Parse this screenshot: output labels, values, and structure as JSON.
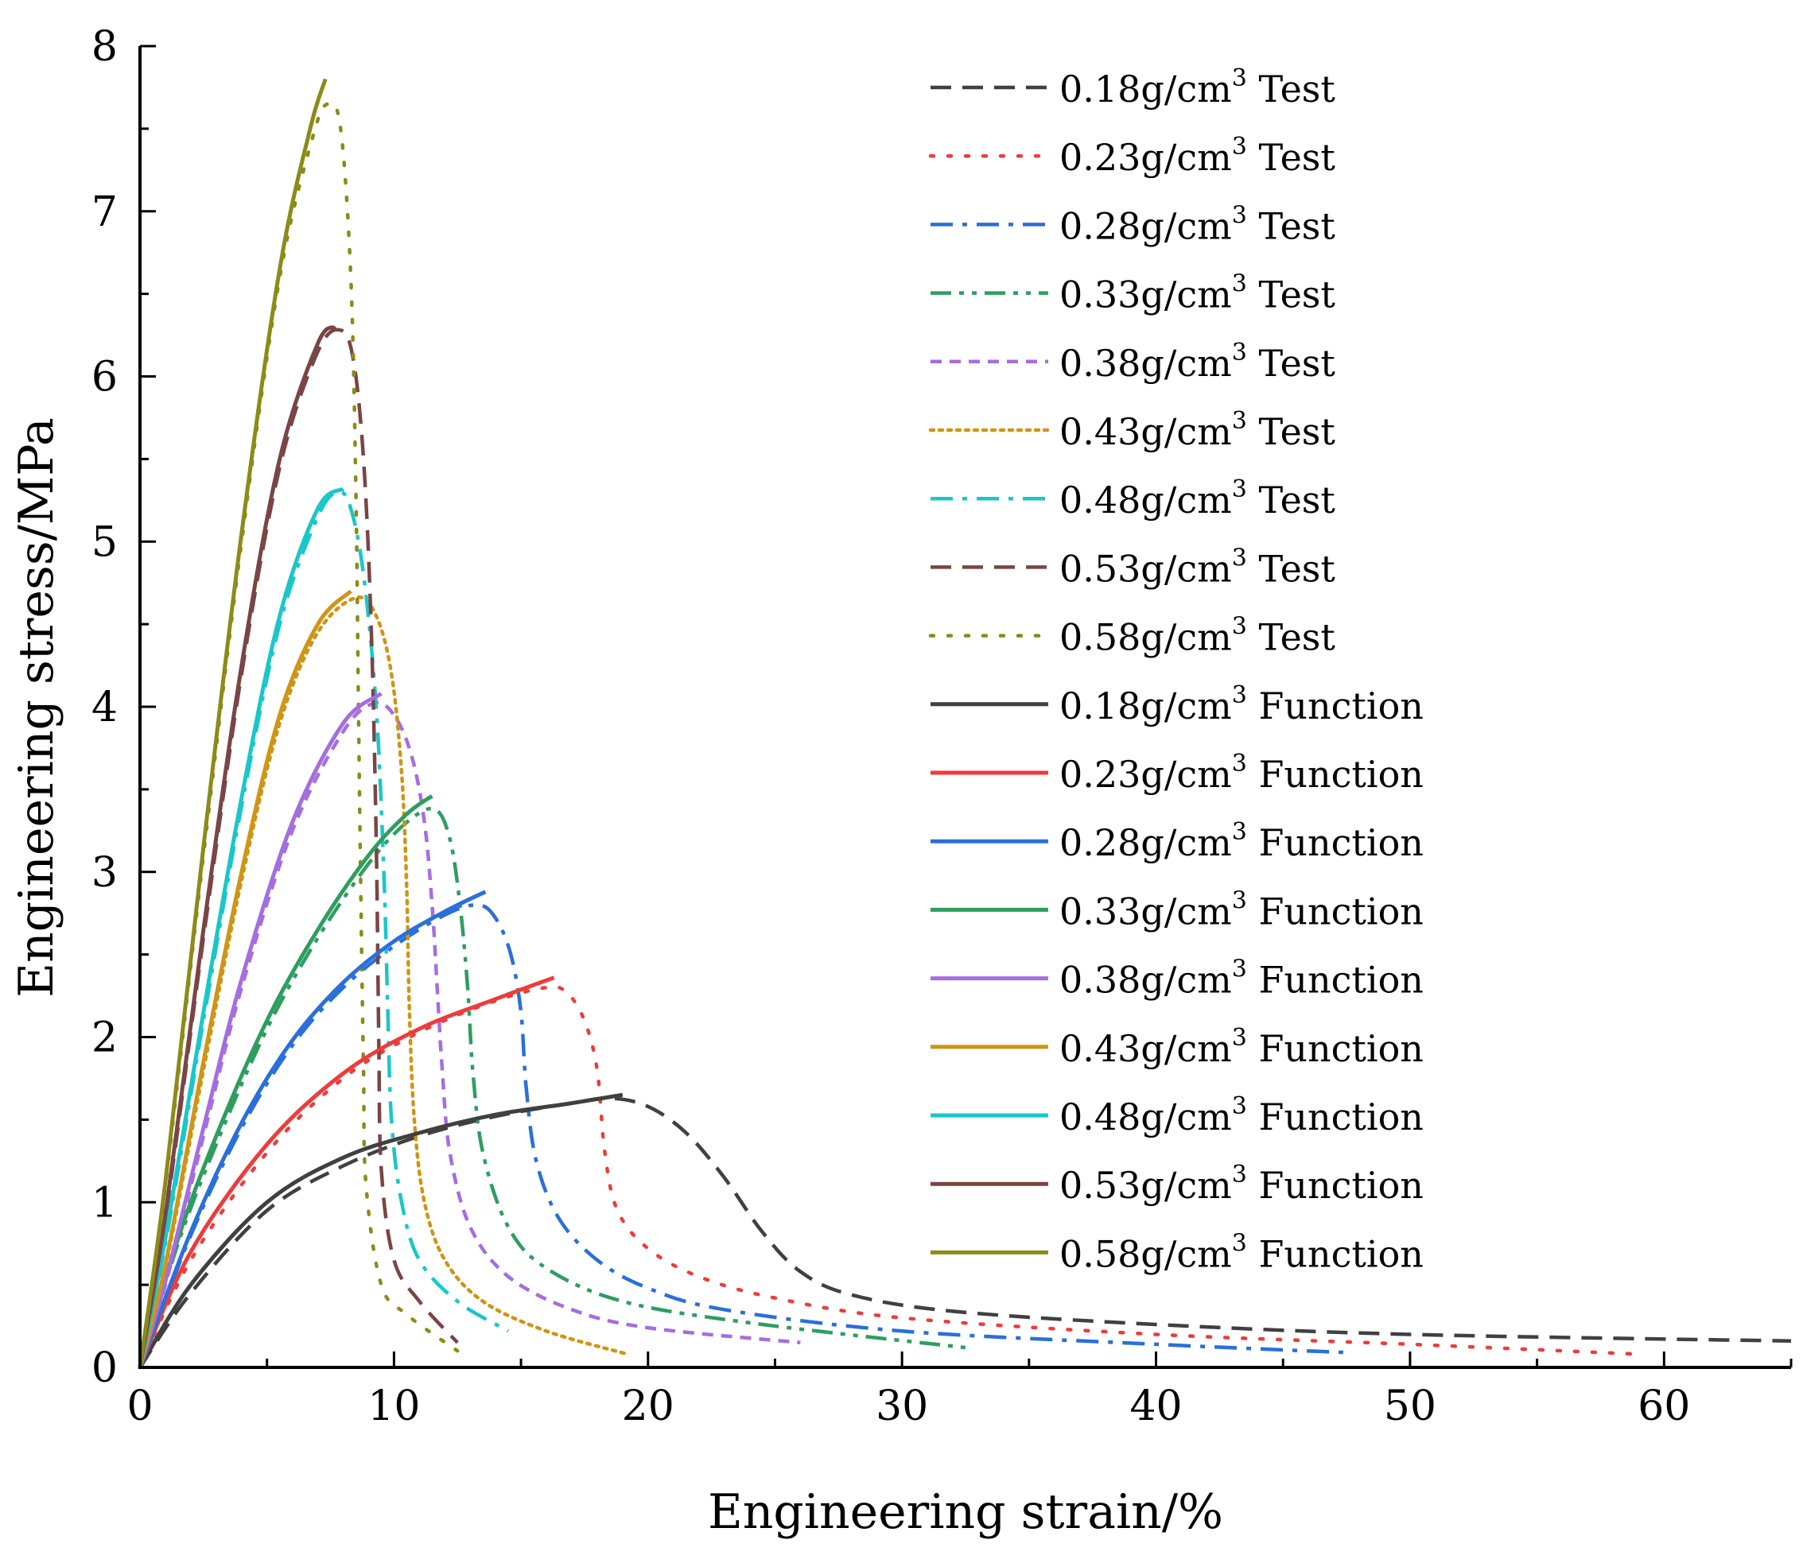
{
  "chart_data": {
    "type": "line",
    "xlabel": "Engineering strain/%",
    "ylabel": "Engineering stress/MPa",
    "xlim": [
      0,
      65
    ],
    "ylim": [
      0,
      8
    ],
    "x_ticks": [
      "0",
      "10",
      "20",
      "30",
      "40",
      "50",
      "60"
    ],
    "y_ticks": [
      "0",
      "1",
      "2",
      "3",
      "4",
      "5",
      "6",
      "7",
      "8"
    ],
    "grid": false,
    "legend_position": "top-right",
    "colors": {
      "d018": "#404040",
      "d023": "#ef3b3b",
      "d028": "#2a6fdb",
      "d033": "#2e9e5e",
      "d038": "#a46ee0",
      "d043": "#cf9514",
      "d048": "#19c7c9",
      "d053": "#7a4545",
      "d058": "#8b8b17"
    },
    "series": [
      {
        "name": "0.18g/cm³ Test",
        "density": "0.18",
        "suffix": "Test",
        "style": "dash",
        "colorKey": "d018",
        "points": [
          [
            0,
            0
          ],
          [
            2,
            0.45
          ],
          [
            5,
            0.95
          ],
          [
            8,
            1.22
          ],
          [
            11,
            1.4
          ],
          [
            14,
            1.52
          ],
          [
            17,
            1.6
          ],
          [
            18.5,
            1.63
          ],
          [
            20,
            1.58
          ],
          [
            21.5,
            1.42
          ],
          [
            23,
            1.15
          ],
          [
            24.5,
            0.82
          ],
          [
            26,
            0.58
          ],
          [
            28,
            0.44
          ],
          [
            32,
            0.34
          ],
          [
            40,
            0.26
          ],
          [
            50,
            0.2
          ],
          [
            65,
            0.16
          ]
        ]
      },
      {
        "name": "0.23g/cm³ Test",
        "density": "0.23",
        "suffix": "Test",
        "style": "dot",
        "colorKey": "d023",
        "points": [
          [
            0,
            0
          ],
          [
            2,
            0.65
          ],
          [
            5,
            1.3
          ],
          [
            8,
            1.75
          ],
          [
            11,
            2.03
          ],
          [
            14,
            2.22
          ],
          [
            16,
            2.3
          ],
          [
            16.8,
            2.27
          ],
          [
            17.5,
            2.1
          ],
          [
            18,
            1.8
          ],
          [
            18.3,
            1.3
          ],
          [
            18.8,
            0.95
          ],
          [
            20,
            0.72
          ],
          [
            22,
            0.55
          ],
          [
            25,
            0.42
          ],
          [
            30,
            0.3
          ],
          [
            40,
            0.2
          ],
          [
            50,
            0.14
          ],
          [
            59,
            0.08
          ]
        ]
      },
      {
        "name": "0.28g/cm³ Test",
        "density": "0.28",
        "suffix": "Test",
        "style": "dashdot",
        "colorKey": "d028",
        "points": [
          [
            0,
            0
          ],
          [
            2,
            0.8
          ],
          [
            4,
            1.45
          ],
          [
            6,
            1.95
          ],
          [
            8,
            2.3
          ],
          [
            10,
            2.55
          ],
          [
            12,
            2.74
          ],
          [
            13.3,
            2.8
          ],
          [
            14,
            2.72
          ],
          [
            14.6,
            2.5
          ],
          [
            15,
            2.15
          ],
          [
            15.2,
            1.7
          ],
          [
            15.6,
            1.25
          ],
          [
            16.5,
            0.9
          ],
          [
            18,
            0.65
          ],
          [
            20,
            0.48
          ],
          [
            23,
            0.35
          ],
          [
            30,
            0.22
          ],
          [
            40,
            0.14
          ],
          [
            47.5,
            0.09
          ]
        ]
      },
      {
        "name": "0.33g/cm³ Test",
        "density": "0.33",
        "suffix": "Test",
        "style": "dashdotdot",
        "colorKey": "d033",
        "points": [
          [
            0,
            0
          ],
          [
            1.5,
            0.75
          ],
          [
            3,
            1.35
          ],
          [
            5,
            2.05
          ],
          [
            7,
            2.6
          ],
          [
            9,
            3.05
          ],
          [
            10.5,
            3.3
          ],
          [
            11.6,
            3.38
          ],
          [
            12.2,
            3.2
          ],
          [
            12.6,
            2.8
          ],
          [
            12.9,
            2.3
          ],
          [
            13.1,
            1.8
          ],
          [
            13.5,
            1.3
          ],
          [
            14.5,
            0.85
          ],
          [
            16,
            0.6
          ],
          [
            19,
            0.4
          ],
          [
            24,
            0.27
          ],
          [
            32.5,
            0.12
          ]
        ]
      },
      {
        "name": "0.38g/cm³ Test",
        "density": "0.38",
        "suffix": "Test",
        "style": "shortdash",
        "colorKey": "d038",
        "points": [
          [
            0,
            0
          ],
          [
            1,
            0.5
          ],
          [
            2.5,
            1.4
          ],
          [
            4,
            2.3
          ],
          [
            6,
            3.25
          ],
          [
            8,
            3.85
          ],
          [
            9.2,
            4.02
          ],
          [
            10,
            3.95
          ],
          [
            10.7,
            3.7
          ],
          [
            11.2,
            3.3
          ],
          [
            11.5,
            2.8
          ],
          [
            11.7,
            2.3
          ],
          [
            11.9,
            1.8
          ],
          [
            12.2,
            1.3
          ],
          [
            13,
            0.85
          ],
          [
            14.5,
            0.55
          ],
          [
            17,
            0.35
          ],
          [
            20,
            0.24
          ],
          [
            26,
            0.15
          ]
        ]
      },
      {
        "name": "0.43g/cm³ Test",
        "density": "0.43",
        "suffix": "Test",
        "style": "fine-dot",
        "colorKey": "d043",
        "points": [
          [
            0,
            0
          ],
          [
            1,
            0.6
          ],
          [
            2.5,
            1.8
          ],
          [
            4,
            2.95
          ],
          [
            5.5,
            3.9
          ],
          [
            7,
            4.45
          ],
          [
            8.5,
            4.66
          ],
          [
            9.3,
            4.55
          ],
          [
            9.9,
            4.2
          ],
          [
            10.3,
            3.6
          ],
          [
            10.5,
            2.9
          ],
          [
            10.6,
            2.2
          ],
          [
            10.8,
            1.5
          ],
          [
            11.2,
            1.0
          ],
          [
            12,
            0.65
          ],
          [
            13.5,
            0.4
          ],
          [
            16,
            0.22
          ],
          [
            19.2,
            0.08
          ]
        ]
      },
      {
        "name": "0.48g/cm³ Test",
        "density": "0.48",
        "suffix": "Test",
        "style": "dashdot",
        "colorKey": "d048",
        "points": [
          [
            0,
            0
          ],
          [
            1,
            0.75
          ],
          [
            2.5,
            2.1
          ],
          [
            4,
            3.4
          ],
          [
            5.5,
            4.5
          ],
          [
            7,
            5.15
          ],
          [
            7.8,
            5.3
          ],
          [
            8.3,
            5.2
          ],
          [
            8.8,
            4.8
          ],
          [
            9.3,
            4.0
          ],
          [
            9.6,
            3.0
          ],
          [
            9.75,
            2.2
          ],
          [
            9.9,
            1.5
          ],
          [
            10.3,
            1.0
          ],
          [
            11,
            0.65
          ],
          [
            12.5,
            0.4
          ],
          [
            14.5,
            0.22
          ]
        ]
      },
      {
        "name": "0.53g/cm³ Test",
        "density": "0.53",
        "suffix": "Test",
        "style": "dash",
        "colorKey": "d053",
        "points": [
          [
            0,
            0
          ],
          [
            1,
            0.9
          ],
          [
            2.5,
            2.6
          ],
          [
            4,
            4.2
          ],
          [
            5.5,
            5.45
          ],
          [
            7,
            6.15
          ],
          [
            7.9,
            6.28
          ],
          [
            8.4,
            6.1
          ],
          [
            8.8,
            5.5
          ],
          [
            9.1,
            4.5
          ],
          [
            9.3,
            3.2
          ],
          [
            9.4,
            2.0
          ],
          [
            9.5,
            1.2
          ],
          [
            10,
            0.65
          ],
          [
            11,
            0.4
          ],
          [
            12.5,
            0.15
          ]
        ]
      },
      {
        "name": "0.58g/cm³ Test",
        "density": "0.58",
        "suffix": "Test",
        "style": "dot",
        "colorKey": "d058",
        "points": [
          [
            0,
            0
          ],
          [
            1,
            1.1
          ],
          [
            2.5,
            3.1
          ],
          [
            4,
            5.0
          ],
          [
            5.5,
            6.6
          ],
          [
            6.8,
            7.45
          ],
          [
            7.4,
            7.65
          ],
          [
            7.9,
            7.5
          ],
          [
            8.3,
            6.6
          ],
          [
            8.5,
            5.3
          ],
          [
            8.6,
            4.0
          ],
          [
            8.7,
            2.8
          ],
          [
            8.8,
            1.8
          ],
          [
            8.9,
            1.1
          ],
          [
            9.5,
            0.5
          ],
          [
            10.5,
            0.32
          ],
          [
            12.5,
            0.1
          ]
        ]
      },
      {
        "name": "0.18g/cm³ Function",
        "density": "0.18",
        "suffix": "Function",
        "style": "solid",
        "colorKey": "d018",
        "points": [
          [
            0,
            0
          ],
          [
            2,
            0.5
          ],
          [
            5,
            1.0
          ],
          [
            8,
            1.27
          ],
          [
            11,
            1.42
          ],
          [
            14,
            1.53
          ],
          [
            17,
            1.6
          ],
          [
            19,
            1.65
          ]
        ]
      },
      {
        "name": "0.23g/cm³ Function",
        "density": "0.23",
        "suffix": "Function",
        "style": "solid",
        "colorKey": "d023",
        "points": [
          [
            0,
            0
          ],
          [
            2,
            0.7
          ],
          [
            5,
            1.35
          ],
          [
            8,
            1.78
          ],
          [
            11,
            2.05
          ],
          [
            14,
            2.23
          ],
          [
            16.3,
            2.36
          ]
        ]
      },
      {
        "name": "0.28g/cm³ Function",
        "density": "0.28",
        "suffix": "Function",
        "style": "solid",
        "colorKey": "d028",
        "points": [
          [
            0,
            0
          ],
          [
            2,
            0.82
          ],
          [
            4,
            1.48
          ],
          [
            6,
            1.98
          ],
          [
            8,
            2.33
          ],
          [
            10,
            2.58
          ],
          [
            12,
            2.76
          ],
          [
            13.6,
            2.88
          ]
        ]
      },
      {
        "name": "0.33g/cm³ Function",
        "density": "0.33",
        "suffix": "Function",
        "style": "solid",
        "colorKey": "d033",
        "points": [
          [
            0,
            0
          ],
          [
            1.5,
            0.78
          ],
          [
            3,
            1.4
          ],
          [
            5,
            2.1
          ],
          [
            7,
            2.65
          ],
          [
            9,
            3.1
          ],
          [
            10.5,
            3.35
          ],
          [
            11.5,
            3.46
          ]
        ]
      },
      {
        "name": "0.38g/cm³ Function",
        "density": "0.38",
        "suffix": "Function",
        "style": "solid",
        "colorKey": "d038",
        "points": [
          [
            0,
            0
          ],
          [
            1,
            0.52
          ],
          [
            2.5,
            1.45
          ],
          [
            4,
            2.35
          ],
          [
            6,
            3.3
          ],
          [
            8,
            3.9
          ],
          [
            9.5,
            4.08
          ]
        ]
      },
      {
        "name": "0.43g/cm³ Function",
        "density": "0.43",
        "suffix": "Function",
        "style": "solid",
        "colorKey": "d043",
        "points": [
          [
            0,
            0
          ],
          [
            1,
            0.62
          ],
          [
            2.5,
            1.85
          ],
          [
            4,
            3.0
          ],
          [
            5.5,
            3.95
          ],
          [
            7,
            4.5
          ],
          [
            8.3,
            4.7
          ]
        ]
      },
      {
        "name": "0.48g/cm³ Function",
        "density": "0.48",
        "suffix": "Function",
        "style": "solid",
        "colorKey": "d048",
        "points": [
          [
            0,
            0
          ],
          [
            1,
            0.78
          ],
          [
            2.5,
            2.15
          ],
          [
            4,
            3.45
          ],
          [
            5.5,
            4.55
          ],
          [
            7,
            5.2
          ],
          [
            8,
            5.32
          ]
        ]
      },
      {
        "name": "0.53g/cm³ Function",
        "density": "0.53",
        "suffix": "Function",
        "style": "solid",
        "colorKey": "d053",
        "points": [
          [
            0,
            0
          ],
          [
            1,
            0.92
          ],
          [
            2.5,
            2.65
          ],
          [
            4,
            4.25
          ],
          [
            5.5,
            5.5
          ],
          [
            7,
            6.2
          ],
          [
            7.7,
            6.3
          ]
        ]
      },
      {
        "name": "0.58g/cm³ Function",
        "density": "0.58",
        "suffix": "Function",
        "style": "solid",
        "colorKey": "d058",
        "points": [
          [
            0,
            0
          ],
          [
            1,
            1.12
          ],
          [
            2.5,
            3.15
          ],
          [
            4,
            5.05
          ],
          [
            5.5,
            6.65
          ],
          [
            6.7,
            7.5
          ],
          [
            7.3,
            7.8
          ]
        ]
      }
    ]
  }
}
